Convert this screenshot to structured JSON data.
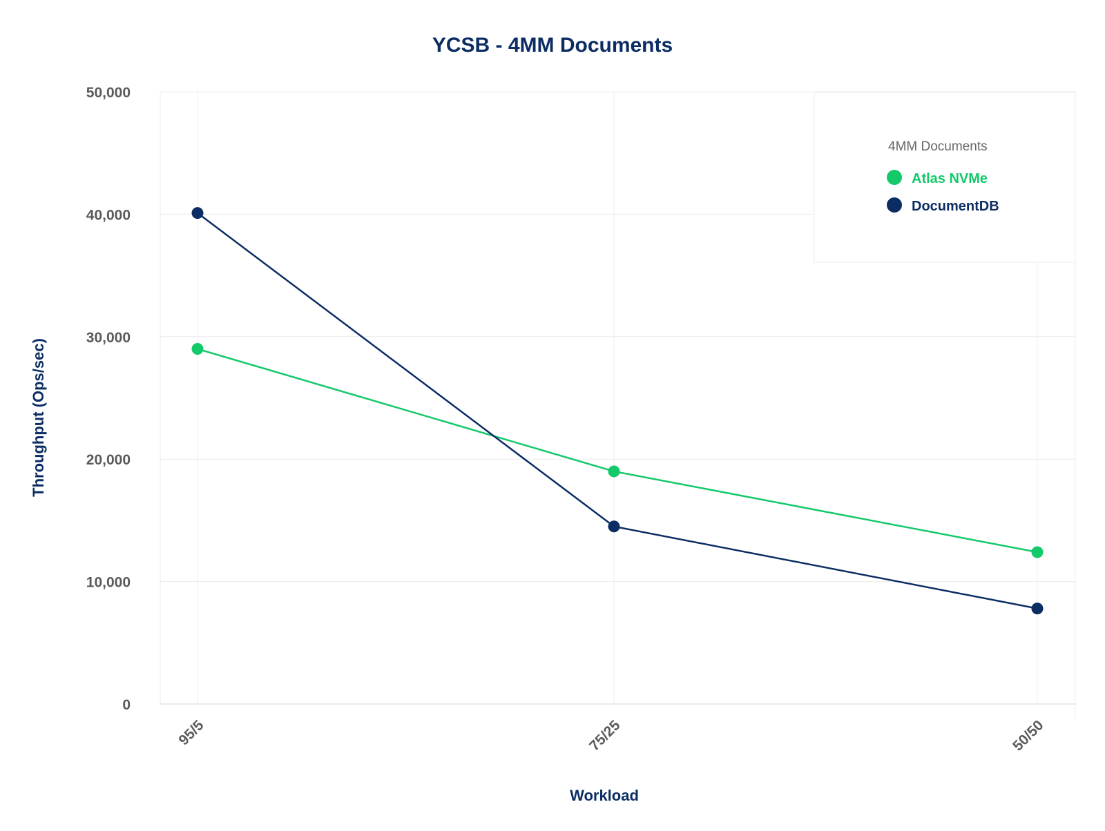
{
  "chart_data": {
    "type": "line",
    "title": "YCSB - 4MM Documents",
    "xlabel": "Workload",
    "ylabel": "Throughput (Ops/sec)",
    "categories": [
      "95/5",
      "75/25",
      "50/50"
    ],
    "ylim": [
      0,
      50000
    ],
    "yticks": [
      0,
      10000,
      20000,
      30000,
      40000,
      50000
    ],
    "ytick_labels": [
      "0",
      "10,000",
      "20,000",
      "30,000",
      "40,000",
      "50,000"
    ],
    "grid": true,
    "legend": {
      "title": "4MM Documents",
      "placement": "top-right"
    },
    "series": [
      {
        "name": "Atlas NVMe",
        "color": "#13c96a",
        "values": [
          29000,
          19000,
          12400
        ]
      },
      {
        "name": "DocumentDB",
        "color": "#0b2d63",
        "values": [
          40100,
          14500,
          7800
        ]
      }
    ]
  }
}
